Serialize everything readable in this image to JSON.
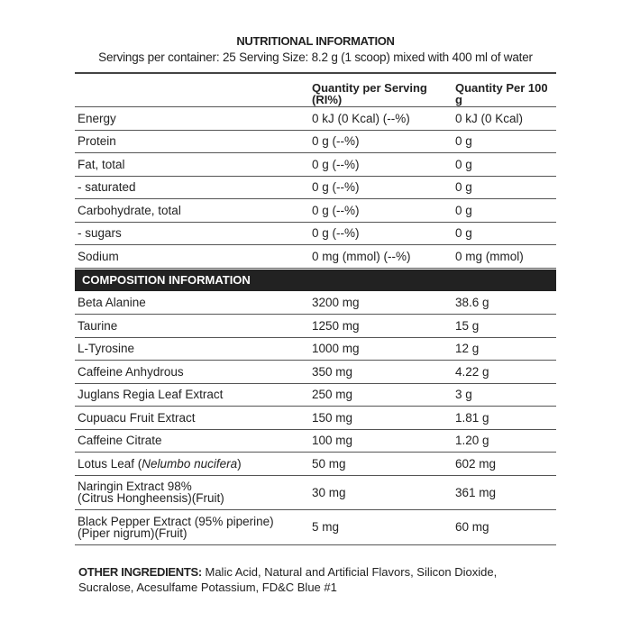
{
  "title": "NUTRITIONAL INFORMATION",
  "subtitle": "Servings per container: 25 Serving Size: 8.2 g (1 scoop) mixed with 400 ml of water",
  "headers": {
    "col2": "Quantity per Serving (RI%)",
    "col3": "Quantity Per 100 g"
  },
  "nutrition": [
    {
      "name": "Energy",
      "serving": "0 kJ (0 Kcal) (--%)",
      "per100": "0 kJ (0 Kcal)"
    },
    {
      "name": "Protein",
      "serving": "0 g (--%)",
      "per100": "0 g"
    },
    {
      "name": "Fat, total",
      "serving": "0 g (--%)",
      "per100": "0 g"
    },
    {
      "name": "- saturated",
      "serving": "0 g (--%)",
      "per100": "0 g"
    },
    {
      "name": "Carbohydrate, total",
      "serving": "0 g (--%)",
      "per100": "0 g"
    },
    {
      "name": "- sugars",
      "serving": "0 g (--%)",
      "per100": "0 g"
    },
    {
      "name": "Sodium",
      "serving": "0 mg (mmol) (--%)",
      "per100": "0 mg (mmol)"
    }
  ],
  "composition_title": "COMPOSITION INFORMATION",
  "composition": [
    {
      "name": "Beta Alanine",
      "serving": "3200 mg",
      "per100": "38.6 g"
    },
    {
      "name": "Taurine",
      "serving": "1250 mg",
      "per100": "15 g"
    },
    {
      "name": "L-Tyrosine",
      "serving": "1000 mg",
      "per100": "12 g"
    },
    {
      "name": "Caffeine Anhydrous",
      "serving": "350 mg",
      "per100": "4.22 g"
    },
    {
      "name": "Juglans Regia Leaf Extract",
      "serving": "250 mg",
      "per100": "3 g"
    },
    {
      "name": "Cupuacu Fruit Extract",
      "serving": "150 mg",
      "per100": "1.81 g"
    },
    {
      "name": "Caffeine Citrate",
      "serving": "100 mg",
      "per100": "1.20 g"
    },
    {
      "name": "Lotus Leaf (",
      "name_italic": "Nelumbo nucifera",
      "name_end": ")",
      "serving": "50 mg",
      "per100": "602 mg"
    },
    {
      "name": "Naringin Extract 98%",
      "name2": "(Citrus Hongheensis)(Fruit)",
      "serving": "30 mg",
      "per100": "361 mg"
    },
    {
      "name": "Black Pepper Extract (95% piperine)",
      "name2": "(Piper nigrum)(Fruit)",
      "serving": "5 mg",
      "per100": "60 mg"
    }
  ],
  "other": {
    "label": "OTHER INGREDIENTS:",
    "text": " Malic Acid, Natural and Artificial Flavors, Silicon Dioxide, Sucralose, Acesulfame Potassium, FD&C Blue #1"
  }
}
